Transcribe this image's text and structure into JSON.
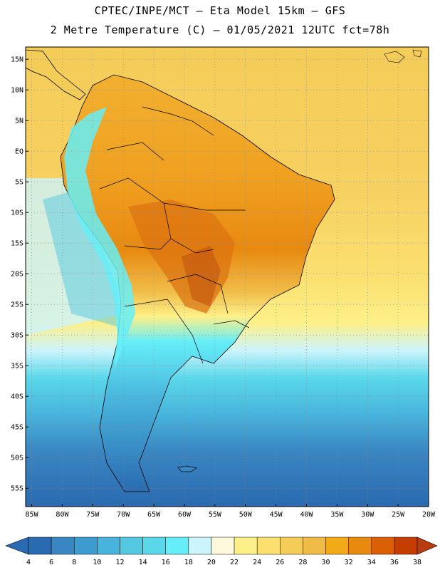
{
  "header": {
    "line1": "CPTEC/INPE/MCT –  Eta Model 15km – GFS",
    "line2": "2 Metre Temperature (C) – 01/05/2021 12UTC fct=78h"
  },
  "map": {
    "lat_range": [
      -58,
      17
    ],
    "lon_range": [
      -86,
      -20
    ],
    "lat_ticks": [
      "15N",
      "10N",
      "5N",
      "EQ",
      "5S",
      "10S",
      "15S",
      "20S",
      "25S",
      "30S",
      "35S",
      "40S",
      "45S",
      "50S",
      "55S"
    ],
    "lat_values": [
      15,
      10,
      5,
      0,
      -5,
      -10,
      -15,
      -20,
      -25,
      -30,
      -35,
      -40,
      -45,
      -50,
      -55
    ],
    "lon_ticks": [
      "85W",
      "80W",
      "75W",
      "70W",
      "65W",
      "60W",
      "55W",
      "50W",
      "45W",
      "40W",
      "35W",
      "30W",
      "25W",
      "20W"
    ],
    "lon_values": [
      -85,
      -80,
      -75,
      -70,
      -65,
      -60,
      -55,
      -50,
      -45,
      -40,
      -35,
      -30,
      -25,
      -20
    ]
  },
  "colorbar": {
    "labels": [
      "4",
      "6",
      "8",
      "10",
      "12",
      "14",
      "16",
      "18",
      "20",
      "22",
      "24",
      "26",
      "28",
      "30",
      "32",
      "34",
      "36",
      "38"
    ],
    "colors": [
      "#2a6ab0",
      "#3a86c2",
      "#3c9cd0",
      "#48b4dc",
      "#54c8e0",
      "#5ad8ea",
      "#66eef8",
      "#ccf4fc",
      "#fef8dc",
      "#fef088",
      "#fbe070",
      "#f4cc58",
      "#f0bc48",
      "#f2aa18",
      "#e88a10",
      "#da6006",
      "#c43e02"
    ],
    "left_arrow_color": "#2a6ab0",
    "right_arrow_color": "#b83c10"
  },
  "colors": {
    "ocean_hot": "#f4cc58",
    "ocean_warm": "#fbe070",
    "ocean_mild": "#fef088",
    "ocean_cool": "#54c8e0",
    "ocean_cold": "#3a86c2",
    "land_hot": "#f0a020",
    "land_veryhot": "#dc7410",
    "andes": "#66eef8",
    "patagonia": "#3c9cd0"
  }
}
